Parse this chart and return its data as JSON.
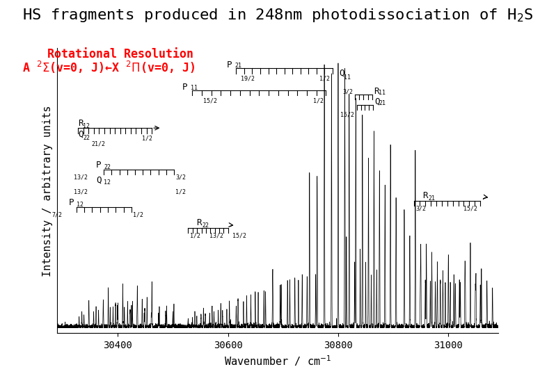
{
  "title": "HS fragments produced in 248nm photodissociation of H$_2$S",
  "subtitle_line1": "Rotational Resolution",
  "subtitle_line2": "A $^2\\Sigma$(v=0, J)←X $^2\\Pi$(v=0, J)",
  "xlabel": "Wavenumber / cm$^{-1}$",
  "ylabel": "Intensity / arbitrary units",
  "xlim": [
    30290,
    31090
  ],
  "ylim": [
    -0.02,
    1.08
  ],
  "xticks": [
    30400,
    30600,
    30800,
    31000
  ],
  "background_color": "#ffffff",
  "warwick_bar_color": "#1b75b8",
  "title_fontsize": 16,
  "subtitle_fontsize": 12,
  "axes_label_fontsize": 11,
  "tick_fontsize": 10,
  "spectrum_color": "#000000"
}
